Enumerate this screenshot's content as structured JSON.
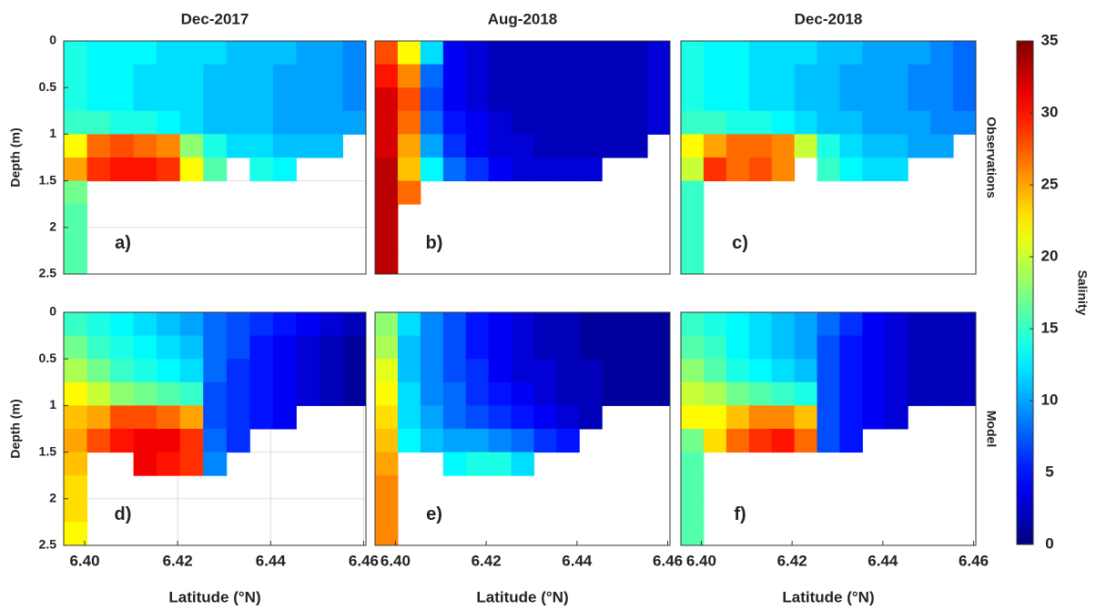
{
  "chart_data": [
    {
      "type": "heatmap",
      "title": "Dec-2017",
      "panel_label": "a)",
      "ylabel": "Depth (m)",
      "colormap": "jet",
      "zlim": [
        0,
        35
      ],
      "x": [
        6.398,
        6.403,
        6.408,
        6.413,
        6.418,
        6.423,
        6.428,
        6.433,
        6.438,
        6.443,
        6.448,
        6.453,
        6.458
      ],
      "y": [
        0.125,
        0.375,
        0.625,
        0.875,
        1.125,
        1.375,
        1.625,
        1.875,
        2.125,
        2.375
      ],
      "xlim": [
        6.3955,
        6.4605
      ],
      "ylim": [
        2.5,
        0
      ],
      "yticks": [
        0,
        0.5,
        1,
        1.5,
        2,
        2.5
      ],
      "grid": true,
      "values": [
        [
          14,
          13,
          13,
          13,
          12,
          12,
          12,
          11,
          11,
          11,
          10,
          10,
          9
        ],
        [
          14,
          13,
          13,
          12,
          12,
          12,
          11,
          11,
          11,
          10,
          10,
          10,
          9
        ],
        [
          14,
          13,
          13,
          12,
          12,
          12,
          11,
          11,
          11,
          10,
          10,
          10,
          9
        ],
        [
          15,
          15,
          14,
          14,
          13,
          12,
          11,
          11,
          11,
          10,
          10,
          10,
          10
        ],
        [
          22,
          27,
          28,
          27,
          26,
          18,
          14,
          12,
          12,
          11,
          11,
          11,
          null
        ],
        [
          25,
          29,
          30,
          30,
          29,
          22,
          16,
          null,
          14,
          13,
          null,
          null,
          null
        ],
        [
          17,
          null,
          null,
          null,
          null,
          null,
          null,
          null,
          null,
          null,
          null,
          null,
          null
        ],
        [
          16,
          null,
          null,
          null,
          null,
          null,
          null,
          null,
          null,
          null,
          null,
          null,
          null
        ],
        [
          16,
          null,
          null,
          null,
          null,
          null,
          null,
          null,
          null,
          null,
          null,
          null,
          null
        ],
        [
          16,
          null,
          null,
          null,
          null,
          null,
          null,
          null,
          null,
          null,
          null,
          null,
          null
        ]
      ]
    },
    {
      "type": "heatmap",
      "title": "Aug-2018",
      "panel_label": "b)",
      "colormap": "jet",
      "zlim": [
        0,
        35
      ],
      "x": [
        6.398,
        6.403,
        6.408,
        6.413,
        6.418,
        6.423,
        6.428,
        6.433,
        6.438,
        6.443,
        6.448,
        6.453,
        6.458
      ],
      "y": [
        0.125,
        0.375,
        0.625,
        0.875,
        1.125,
        1.375,
        1.625,
        1.875,
        2.125,
        2.375
      ],
      "xlim": [
        6.3955,
        6.4605
      ],
      "ylim": [
        2.5,
        0
      ],
      "values": [
        [
          28,
          22,
          12,
          4,
          3,
          2,
          2,
          2,
          2,
          2,
          2,
          2,
          3
        ],
        [
          30,
          26,
          8,
          4,
          3,
          2,
          2,
          2,
          2,
          2,
          2,
          2,
          3
        ],
        [
          32,
          28,
          7,
          4,
          3,
          2,
          2,
          2,
          2,
          2,
          2,
          2,
          3
        ],
        [
          32,
          27,
          8,
          5,
          4,
          3,
          2,
          2,
          2,
          2,
          2,
          2,
          3
        ],
        [
          32,
          25,
          10,
          6,
          4,
          3,
          3,
          2,
          2,
          2,
          2,
          2,
          null
        ],
        [
          33,
          24,
          13,
          8,
          6,
          4,
          3,
          3,
          3,
          3,
          null,
          null,
          null
        ],
        [
          33,
          27,
          null,
          null,
          null,
          null,
          null,
          null,
          null,
          null,
          null,
          null,
          null
        ],
        [
          33,
          null,
          null,
          null,
          null,
          null,
          null,
          null,
          null,
          null,
          null,
          null,
          null
        ],
        [
          33,
          null,
          null,
          null,
          null,
          null,
          null,
          null,
          null,
          null,
          null,
          null,
          null
        ],
        [
          33,
          null,
          null,
          null,
          null,
          null,
          null,
          null,
          null,
          null,
          null,
          null,
          null
        ]
      ]
    },
    {
      "type": "heatmap",
      "title": "Dec-2018",
      "panel_label": "c)",
      "side_label": "Observations",
      "colormap": "jet",
      "zlim": [
        0,
        35
      ],
      "x": [
        6.398,
        6.403,
        6.408,
        6.413,
        6.418,
        6.423,
        6.428,
        6.433,
        6.438,
        6.443,
        6.448,
        6.453,
        6.458
      ],
      "y": [
        0.125,
        0.375,
        0.625,
        0.875,
        1.125,
        1.375,
        1.625,
        1.875,
        2.125,
        2.375
      ],
      "xlim": [
        6.3955,
        6.4605
      ],
      "ylim": [
        2.5,
        0
      ],
      "values": [
        [
          14,
          13,
          13,
          12,
          12,
          12,
          11,
          11,
          10,
          10,
          10,
          9,
          8
        ],
        [
          14,
          13,
          13,
          12,
          12,
          11,
          11,
          10,
          10,
          10,
          9,
          9,
          8
        ],
        [
          14,
          13,
          13,
          12,
          12,
          11,
          11,
          10,
          10,
          10,
          9,
          9,
          8
        ],
        [
          15,
          15,
          14,
          14,
          13,
          12,
          11,
          11,
          10,
          10,
          10,
          9,
          9
        ],
        [
          22,
          25,
          27,
          27,
          26,
          20,
          14,
          12,
          11,
          11,
          10,
          10,
          null
        ],
        [
          20,
          29,
          27,
          28,
          26,
          null,
          15,
          13,
          12,
          12,
          null,
          null,
          null
        ],
        [
          15,
          null,
          null,
          null,
          null,
          null,
          null,
          null,
          null,
          null,
          null,
          null,
          null
        ],
        [
          15,
          null,
          null,
          null,
          null,
          null,
          null,
          null,
          null,
          null,
          null,
          null,
          null
        ],
        [
          15,
          null,
          null,
          null,
          null,
          null,
          null,
          null,
          null,
          null,
          null,
          null,
          null
        ],
        [
          15,
          null,
          null,
          null,
          null,
          null,
          null,
          null,
          null,
          null,
          null,
          null,
          null
        ]
      ]
    },
    {
      "type": "heatmap",
      "panel_label": "d)",
      "ylabel": "Depth (m)",
      "xlabel": "Latitude (°N)",
      "colormap": "jet",
      "zlim": [
        0,
        35
      ],
      "x": [
        6.398,
        6.403,
        6.408,
        6.413,
        6.418,
        6.423,
        6.428,
        6.433,
        6.438,
        6.443,
        6.448,
        6.453,
        6.458
      ],
      "y": [
        0.125,
        0.375,
        0.625,
        0.875,
        1.125,
        1.375,
        1.625,
        1.875,
        2.125,
        2.375
      ],
      "xlim": [
        6.3955,
        6.4605
      ],
      "ylim": [
        2.5,
        0
      ],
      "yticks": [
        0,
        0.5,
        1,
        1.5,
        2,
        2.5
      ],
      "grid": true,
      "xticks": [
        {
          "value": 6.4,
          "label": "6.40"
        },
        {
          "value": 6.42,
          "label": "6.42"
        },
        {
          "value": 6.44,
          "label": "6.44"
        },
        {
          "value": 6.46,
          "label": "6.46"
        }
      ],
      "values": [
        [
          15,
          14,
          13,
          12,
          11,
          10,
          8,
          7,
          6,
          5,
          4,
          3,
          2
        ],
        [
          17,
          15,
          14,
          13,
          12,
          11,
          8,
          7,
          5,
          4,
          3,
          2,
          1
        ],
        [
          19,
          17,
          15,
          14,
          13,
          12,
          8,
          6,
          5,
          4,
          3,
          2,
          1
        ],
        [
          22,
          20,
          18,
          17,
          16,
          15,
          7,
          6,
          5,
          4,
          3,
          2,
          1
        ],
        [
          24,
          25,
          28,
          28,
          27,
          25,
          7,
          6,
          5,
          4,
          null,
          null,
          null
        ],
        [
          25,
          28,
          30,
          31,
          31,
          29,
          8,
          6,
          null,
          null,
          null,
          null,
          null
        ],
        [
          24,
          null,
          null,
          31,
          30,
          29,
          9,
          null,
          null,
          null,
          null,
          null,
          null
        ],
        [
          23,
          null,
          null,
          null,
          null,
          null,
          null,
          null,
          null,
          null,
          null,
          null,
          null
        ],
        [
          23,
          null,
          null,
          null,
          null,
          null,
          null,
          null,
          null,
          null,
          null,
          null,
          null
        ],
        [
          22,
          null,
          null,
          null,
          null,
          null,
          null,
          null,
          null,
          null,
          null,
          null,
          null
        ]
      ]
    },
    {
      "type": "heatmap",
      "panel_label": "e)",
      "xlabel": "Latitude (°N)",
      "colormap": "jet",
      "zlim": [
        0,
        35
      ],
      "x": [
        6.398,
        6.403,
        6.408,
        6.413,
        6.418,
        6.423,
        6.428,
        6.433,
        6.438,
        6.443,
        6.448,
        6.453,
        6.458
      ],
      "y": [
        0.125,
        0.375,
        0.625,
        0.875,
        1.125,
        1.375,
        1.625,
        1.875,
        2.125,
        2.375
      ],
      "xlim": [
        6.3955,
        6.4605
      ],
      "ylim": [
        2.5,
        0
      ],
      "xticks": [
        {
          "value": 6.4,
          "label": "6.40"
        },
        {
          "value": 6.42,
          "label": "6.42"
        },
        {
          "value": 6.44,
          "label": "6.44"
        },
        {
          "value": 6.46,
          "label": "6.46"
        }
      ],
      "values": [
        [
          18,
          12,
          9,
          7,
          5,
          4,
          3,
          2,
          2,
          1,
          1,
          1,
          1
        ],
        [
          19,
          11,
          9,
          7,
          5,
          4,
          3,
          2,
          2,
          1,
          1,
          1,
          1
        ],
        [
          21,
          11,
          9,
          7,
          6,
          4,
          3,
          3,
          2,
          2,
          1,
          1,
          1
        ],
        [
          22,
          12,
          9,
          8,
          6,
          5,
          4,
          3,
          2,
          2,
          1,
          1,
          1
        ],
        [
          23,
          12,
          10,
          8,
          7,
          6,
          5,
          4,
          3,
          2,
          null,
          null,
          null
        ],
        [
          24,
          13,
          11,
          10,
          10,
          9,
          8,
          6,
          5,
          null,
          null,
          null,
          null
        ],
        [
          25,
          null,
          null,
          13,
          14,
          14,
          12,
          null,
          null,
          null,
          null,
          null,
          null
        ],
        [
          26,
          null,
          null,
          null,
          null,
          null,
          null,
          null,
          null,
          null,
          null,
          null,
          null
        ],
        [
          26,
          null,
          null,
          null,
          null,
          null,
          null,
          null,
          null,
          null,
          null,
          null,
          null
        ],
        [
          26,
          null,
          null,
          null,
          null,
          null,
          null,
          null,
          null,
          null,
          null,
          null,
          null
        ]
      ]
    },
    {
      "type": "heatmap",
      "panel_label": "f)",
      "side_label": "Model",
      "xlabel": "Latitude (°N)",
      "colormap": "jet",
      "zlim": [
        0,
        35
      ],
      "x": [
        6.398,
        6.403,
        6.408,
        6.413,
        6.418,
        6.423,
        6.428,
        6.433,
        6.438,
        6.443,
        6.448,
        6.453,
        6.458
      ],
      "y": [
        0.125,
        0.375,
        0.625,
        0.875,
        1.125,
        1.375,
        1.625,
        1.875,
        2.125,
        2.375
      ],
      "xlim": [
        6.3955,
        6.4605
      ],
      "ylim": [
        2.5,
        0
      ],
      "xticks": [
        {
          "value": 6.4,
          "label": "6.40"
        },
        {
          "value": 6.42,
          "label": "6.42"
        },
        {
          "value": 6.44,
          "label": "6.44"
        },
        {
          "value": 6.46,
          "label": "6.46"
        }
      ],
      "values": [
        [
          15,
          14,
          13,
          12,
          11,
          10,
          8,
          6,
          4,
          3,
          2,
          2,
          2
        ],
        [
          16,
          15,
          13,
          12,
          11,
          10,
          7,
          5,
          4,
          3,
          2,
          2,
          2
        ],
        [
          18,
          16,
          14,
          13,
          12,
          11,
          7,
          5,
          4,
          3,
          2,
          2,
          2
        ],
        [
          20,
          19,
          17,
          16,
          15,
          14,
          7,
          5,
          4,
          3,
          2,
          2,
          2
        ],
        [
          22,
          22,
          24,
          26,
          26,
          24,
          7,
          5,
          4,
          3,
          null,
          null,
          null
        ],
        [
          17,
          23,
          27,
          29,
          30,
          27,
          7,
          5,
          null,
          null,
          null,
          null,
          null
        ],
        [
          16,
          null,
          null,
          null,
          null,
          null,
          null,
          null,
          null,
          null,
          null,
          null,
          null
        ],
        [
          16,
          null,
          null,
          null,
          null,
          null,
          null,
          null,
          null,
          null,
          null,
          null,
          null
        ],
        [
          16,
          null,
          null,
          null,
          null,
          null,
          null,
          null,
          null,
          null,
          null,
          null,
          null
        ],
        [
          16,
          null,
          null,
          null,
          null,
          null,
          null,
          null,
          null,
          null,
          null,
          null,
          null
        ]
      ]
    },
    {
      "type": "colorbar",
      "label": "Salinity",
      "colormap": "jet",
      "zlim": [
        0,
        35
      ],
      "zticks": [
        0,
        5,
        10,
        15,
        20,
        25,
        30,
        35
      ]
    }
  ]
}
